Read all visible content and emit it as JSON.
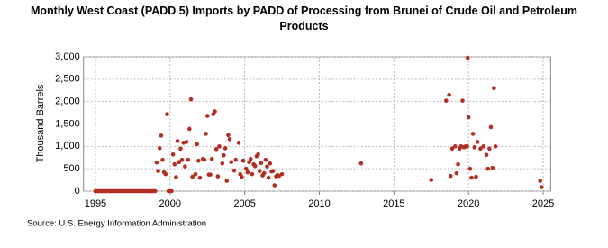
{
  "chart_data": {
    "type": "scatter",
    "title": "Monthly West Coast (PADD 5) Imports by PADD of Processing from Brunei of Crude Oil and Petroleum Products",
    "y_label": "Thousand Barrels",
    "source": "Source: U.S. Energy Information Administration",
    "color": "#b22d22",
    "grid": true,
    "xlim": [
      1994.2,
      2025.5
    ],
    "xticks": [
      1995,
      2000,
      2005,
      2010,
      2015,
      2020,
      2025
    ],
    "ylim": [
      0,
      3000
    ],
    "yticks": [
      0,
      500,
      {
        "value": 1000,
        "label": "1,000"
      },
      {
        "value": 1500,
        "label": "1,500"
      },
      {
        "value": 2000,
        "label": "2,000"
      },
      {
        "value": 2500,
        "label": "2,500"
      },
      {
        "value": 3000,
        "label": "3,000"
      }
    ],
    "x": [
      1995,
      1995.08,
      1995.17,
      1995.25,
      1995.33,
      1995.42,
      1995.5,
      1995.58,
      1995.67,
      1995.75,
      1995.83,
      1995.92,
      1996,
      1996.08,
      1996.17,
      1996.25,
      1996.33,
      1996.42,
      1996.5,
      1996.58,
      1996.67,
      1996.75,
      1996.83,
      1996.92,
      1997,
      1997.08,
      1997.17,
      1997.25,
      1997.33,
      1997.42,
      1997.5,
      1997.58,
      1997.67,
      1997.75,
      1997.83,
      1997.92,
      1998,
      1998.08,
      1998.17,
      1998.25,
      1998.33,
      1998.42,
      1998.5,
      1998.58,
      1998.67,
      1998.75,
      1998.83,
      1998.92,
      1999,
      1999.1,
      1999.2,
      1999.3,
      1999.4,
      1999.5,
      1999.6,
      1999.7,
      1999.8,
      1999.9,
      2000,
      2000.1,
      2000.2,
      2000.3,
      2000.4,
      2000.5,
      2000.6,
      2000.7,
      2000.8,
      2000.9,
      2001,
      2001.1,
      2001.2,
      2001.3,
      2001.4,
      2001.5,
      2001.7,
      2001.8,
      2001.9,
      2002,
      2002.2,
      2002.3,
      2002.4,
      2002.5,
      2002.6,
      2002.7,
      2002.8,
      2002.9,
      2003,
      2003.1,
      2003.2,
      2003.3,
      2003.5,
      2003.6,
      2003.7,
      2003.8,
      2003.9,
      2004,
      2004.1,
      2004.3,
      2004.4,
      2004.6,
      2004.7,
      2004.8,
      2004.9,
      2005.1,
      2005.2,
      2005.3,
      2005.4,
      2005.5,
      2005.6,
      2005.7,
      2005.8,
      2005.9,
      2006,
      2006.1,
      2006.2,
      2006.3,
      2006.4,
      2006.5,
      2006.6,
      2006.7,
      2006.8,
      2006.9,
      2007,
      2007.1,
      2007.2,
      2007.3,
      2007.5,
      2012.8,
      2017.5,
      2018.5,
      2018.7,
      2018.8,
      2018.9,
      2019.1,
      2019.2,
      2019.3,
      2019.4,
      2019.5,
      2019.6,
      2019.7,
      2019.8,
      2019.9,
      2019.95,
      2020,
      2020.1,
      2020.2,
      2020.3,
      2020.4,
      2020.5,
      2020.6,
      2020.8,
      2021,
      2021.2,
      2021.3,
      2021.4,
      2021.5,
      2021.6,
      2021.7,
      2021.8,
      2024.8,
      2024.9
    ],
    "values": [
      0,
      0,
      0,
      0,
      0,
      0,
      0,
      0,
      0,
      0,
      0,
      0,
      0,
      0,
      0,
      0,
      0,
      0,
      0,
      0,
      0,
      0,
      0,
      0,
      0,
      0,
      0,
      0,
      0,
      0,
      0,
      0,
      0,
      0,
      0,
      0,
      0,
      0,
      0,
      0,
      0,
      0,
      0,
      0,
      0,
      0,
      0,
      0,
      0,
      640,
      450,
      960,
      1240,
      700,
      420,
      380,
      1720,
      0,
      0,
      0,
      820,
      600,
      310,
      1120,
      650,
      950,
      700,
      1080,
      550,
      1100,
      700,
      1390,
      2050,
      320,
      380,
      1050,
      680,
      300,
      720,
      700,
      1280,
      1680,
      370,
      370,
      720,
      1720,
      1780,
      940,
      330,
      1000,
      620,
      800,
      960,
      230,
      1250,
      1160,
      650,
      460,
      700,
      1080,
      380,
      320,
      680,
      500,
      420,
      650,
      720,
      380,
      600,
      560,
      780,
      820,
      450,
      630,
      350,
      400,
      700,
      550,
      300,
      620,
      440,
      450,
      130,
      330,
      360,
      340,
      380,
      620,
      250,
      2020,
      2150,
      340,
      950,
      1000,
      400,
      600,
      950,
      1000,
      2020,
      980,
      1000,
      1000,
      2980,
      1650,
      500,
      300,
      1280,
      980,
      320,
      1100,
      950,
      1000,
      810,
      500,
      950,
      1430,
      520,
      2300,
      1000,
      230,
      90
    ]
  }
}
